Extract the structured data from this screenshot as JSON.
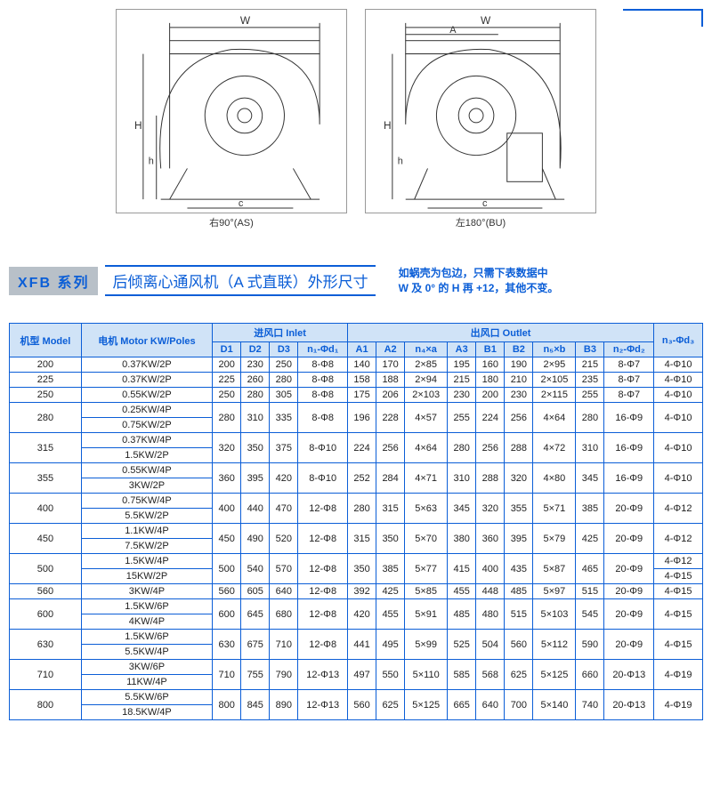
{
  "diagrams": {
    "left_caption": "右90°(AS)",
    "right_caption": "左180°(BU)",
    "dim_w": "W",
    "dim_h": "H",
    "dim_h2": "h",
    "dim_c": "c",
    "dim_a": "A"
  },
  "header": {
    "tag": "XFB 系列",
    "title": "后倾离心通风机（A 式直联）外形尺寸",
    "note_line1": "如蜗壳为包边，只需下表数据中",
    "note_line2": "W 及 0° 的 H 再 +12，其他不变。"
  },
  "table": {
    "h_model": "机型 Model",
    "h_motor": "电机 Motor KW/Poles",
    "h_inlet": "进风口 Inlet",
    "h_outlet": "出风口 Outlet",
    "h_n3": "n₃-Φd₃",
    "h_d1": "D1",
    "h_d2": "D2",
    "h_d3": "D3",
    "h_n1": "n₁-Φd₁",
    "h_a1": "A1",
    "h_a2": "A2",
    "h_n4": "n₄×a",
    "h_a3": "A3",
    "h_b1": "B1",
    "h_b2": "B2",
    "h_n5": "n₅×b",
    "h_b3": "B3",
    "h_n2": "n₂-Φd₂",
    "rows": [
      {
        "model": "200",
        "motors": [
          "0.37KW/2P"
        ],
        "d1": "200",
        "d2": "230",
        "d3": "250",
        "n1": "8-Φ8",
        "a1": "140",
        "a2": "170",
        "n4": "2×85",
        "a3": "195",
        "b1": "160",
        "b2": "190",
        "n5": "2×95",
        "b3": "215",
        "n2": "8-Φ7",
        "n3": "4-Φ10"
      },
      {
        "model": "225",
        "motors": [
          "0.37KW/2P"
        ],
        "d1": "225",
        "d2": "260",
        "d3": "280",
        "n1": "8-Φ8",
        "a1": "158",
        "a2": "188",
        "n4": "2×94",
        "a3": "215",
        "b1": "180",
        "b2": "210",
        "n5": "2×105",
        "b3": "235",
        "n2": "8-Φ7",
        "n3": "4-Φ10"
      },
      {
        "model": "250",
        "motors": [
          "0.55KW/2P"
        ],
        "d1": "250",
        "d2": "280",
        "d3": "305",
        "n1": "8-Φ8",
        "a1": "175",
        "a2": "206",
        "n4": "2×103",
        "a3": "230",
        "b1": "200",
        "b2": "230",
        "n5": "2×115",
        "b3": "255",
        "n2": "8-Φ7",
        "n3": "4-Φ10"
      },
      {
        "model": "280",
        "motors": [
          "0.25KW/4P",
          "0.75KW/2P"
        ],
        "d1": "280",
        "d2": "310",
        "d3": "335",
        "n1": "8-Φ8",
        "a1": "196",
        "a2": "228",
        "n4": "4×57",
        "a3": "255",
        "b1": "224",
        "b2": "256",
        "n5": "4×64",
        "b3": "280",
        "n2": "16-Φ9",
        "n3": "4-Φ10"
      },
      {
        "model": "315",
        "motors": [
          "0.37KW/4P",
          "1.5KW/2P"
        ],
        "d1": "320",
        "d2": "350",
        "d3": "375",
        "n1": "8-Φ10",
        "a1": "224",
        "a2": "256",
        "n4": "4×64",
        "a3": "280",
        "b1": "256",
        "b2": "288",
        "n5": "4×72",
        "b3": "310",
        "n2": "16-Φ9",
        "n3": "4-Φ10"
      },
      {
        "model": "355",
        "motors": [
          "0.55KW/4P",
          "3KW/2P"
        ],
        "d1": "360",
        "d2": "395",
        "d3": "420",
        "n1": "8-Φ10",
        "a1": "252",
        "a2": "284",
        "n4": "4×71",
        "a3": "310",
        "b1": "288",
        "b2": "320",
        "n5": "4×80",
        "b3": "345",
        "n2": "16-Φ9",
        "n3": "4-Φ10"
      },
      {
        "model": "400",
        "motors": [
          "0.75KW/4P",
          "5.5KW/2P"
        ],
        "d1": "400",
        "d2": "440",
        "d3": "470",
        "n1": "12-Φ8",
        "a1": "280",
        "a2": "315",
        "n4": "5×63",
        "a3": "345",
        "b1": "320",
        "b2": "355",
        "n5": "5×71",
        "b3": "385",
        "n2": "20-Φ9",
        "n3": "4-Φ12"
      },
      {
        "model": "450",
        "motors": [
          "1.1KW/4P",
          "7.5KW/2P"
        ],
        "d1": "450",
        "d2": "490",
        "d3": "520",
        "n1": "12-Φ8",
        "a1": "315",
        "a2": "350",
        "n4": "5×70",
        "a3": "380",
        "b1": "360",
        "b2": "395",
        "n5": "5×79",
        "b3": "425",
        "n2": "20-Φ9",
        "n3": "4-Φ12"
      },
      {
        "model": "500",
        "motors": [
          "1.5KW/4P",
          "15KW/2P"
        ],
        "d1": "500",
        "d2": "540",
        "d3": "570",
        "n1": "12-Φ8",
        "a1": "350",
        "a2": "385",
        "n4": "5×77",
        "a3": "415",
        "b1": "400",
        "b2": "435",
        "n5": "5×87",
        "b3": "465",
        "n2": "20-Φ9",
        "n3": [
          "4-Φ12",
          "4-Φ15"
        ]
      },
      {
        "model": "560",
        "motors": [
          "3KW/4P"
        ],
        "d1": "560",
        "d2": "605",
        "d3": "640",
        "n1": "12-Φ8",
        "a1": "392",
        "a2": "425",
        "n4": "5×85",
        "a3": "455",
        "b1": "448",
        "b2": "485",
        "n5": "5×97",
        "b3": "515",
        "n2": "20-Φ9",
        "n3": "4-Φ15"
      },
      {
        "model": "600",
        "motors": [
          "1.5KW/6P",
          "4KW/4P"
        ],
        "d1": "600",
        "d2": "645",
        "d3": "680",
        "n1": "12-Φ8",
        "a1": "420",
        "a2": "455",
        "n4": "5×91",
        "a3": "485",
        "b1": "480",
        "b2": "515",
        "n5": "5×103",
        "b3": "545",
        "n2": "20-Φ9",
        "n3": "4-Φ15"
      },
      {
        "model": "630",
        "motors": [
          "1.5KW/6P",
          "5.5KW/4P"
        ],
        "d1": "630",
        "d2": "675",
        "d3": "710",
        "n1": "12-Φ8",
        "a1": "441",
        "a2": "495",
        "n4": "5×99",
        "a3": "525",
        "b1": "504",
        "b2": "560",
        "n5": "5×112",
        "b3": "590",
        "n2": "20-Φ9",
        "n3": "4-Φ15"
      },
      {
        "model": "710",
        "motors": [
          "3KW/6P",
          "11KW/4P"
        ],
        "d1": "710",
        "d2": "755",
        "d3": "790",
        "n1": "12-Φ13",
        "a1": "497",
        "a2": "550",
        "n4": "5×110",
        "a3": "585",
        "b1": "568",
        "b2": "625",
        "n5": "5×125",
        "b3": "660",
        "n2": "20-Φ13",
        "n3": "4-Φ19"
      },
      {
        "model": "800",
        "motors": [
          "5.5KW/6P",
          "18.5KW/4P"
        ],
        "d1": "800",
        "d2": "845",
        "d3": "890",
        "n1": "12-Φ13",
        "a1": "560",
        "a2": "625",
        "n4": "5×125",
        "a3": "665",
        "b1": "640",
        "b2": "700",
        "n5": "5×140",
        "b3": "740",
        "n2": "20-Φ13",
        "n3": "4-Φ19"
      }
    ]
  },
  "colors": {
    "blue": "#0b5ed7",
    "head_bg": "#d0e3f7",
    "tag_bg": "#b8c0c8"
  }
}
